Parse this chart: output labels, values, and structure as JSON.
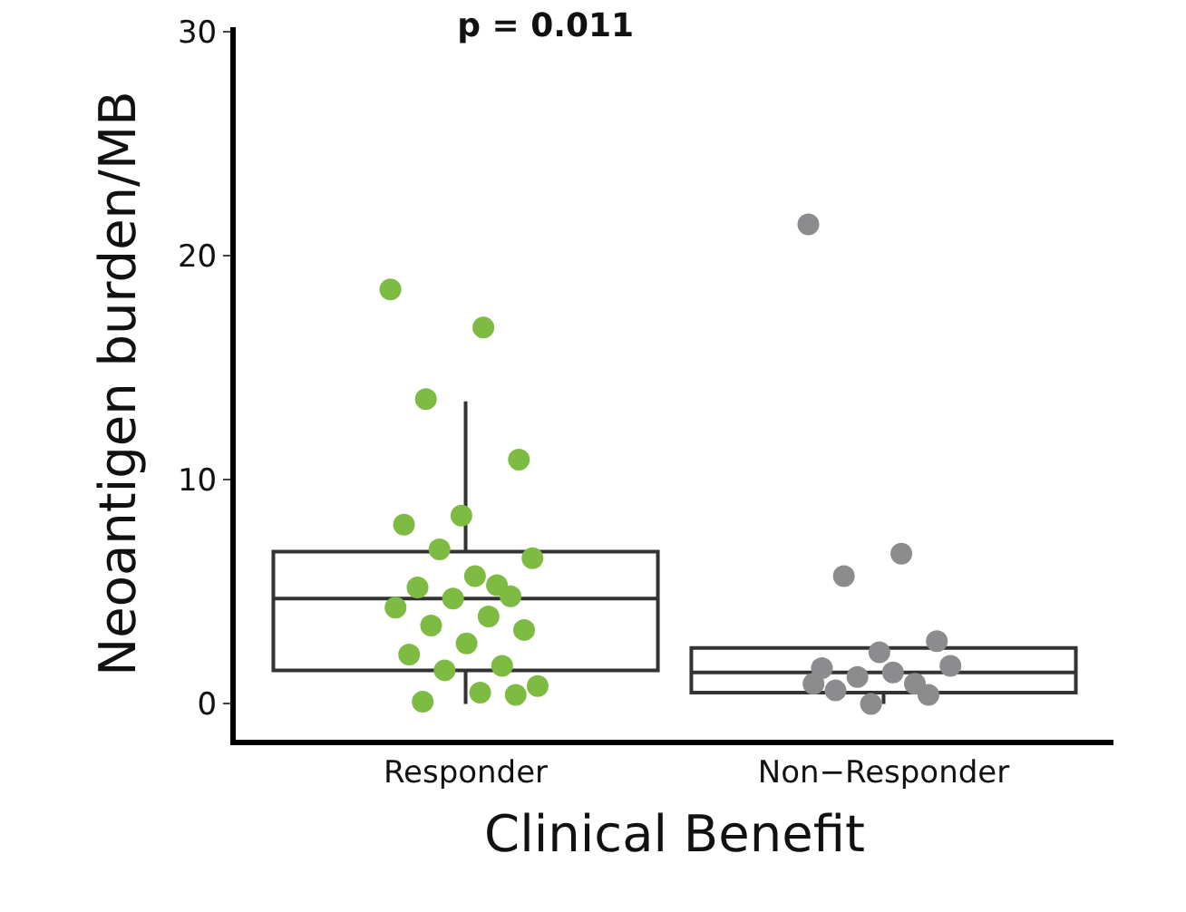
{
  "chart_data": {
    "type": "box",
    "title": "p = 0.011",
    "xlabel": "Clinical Benefit",
    "ylabel": "Neoantigen burden/MB",
    "categories": [
      "Responder",
      "Non−Responder"
    ],
    "boxes": [
      {
        "low": 0,
        "q1": 1.5,
        "median": 4.7,
        "q3": 6.8,
        "high": 13.5
      },
      {
        "low": 0,
        "q1": 0.5,
        "median": 1.4,
        "q3": 2.5,
        "high": 2.7
      }
    ],
    "ylim": [
      -1.6,
      30.2
    ],
    "yticks": [
      0,
      10,
      20,
      30
    ],
    "marker": "circle",
    "series": [
      {
        "type": "scatter",
        "color": "#7dbb42",
        "x": [
          "Responder",
          "Responder",
          "Responder",
          "Responder",
          "Responder",
          "Responder",
          "Responder",
          "Responder",
          "Responder",
          "Responder",
          "Responder",
          "Responder",
          "Responder",
          "Responder",
          "Responder",
          "Responder",
          "Responder",
          "Responder",
          "Responder",
          "Responder",
          "Responder",
          "Responder",
          "Responder",
          "Responder",
          "Responder"
        ],
        "values": [
          18.5,
          16.8,
          13.6,
          10.9,
          8.4,
          8.0,
          5.3,
          6.9,
          6.5,
          5.7,
          5.2,
          4.8,
          4.7,
          4.3,
          3.9,
          3.5,
          3.3,
          2.7,
          2.2,
          1.7,
          1.5,
          0.8,
          0.5,
          0.1,
          0.4
        ]
      },
      {
        "type": "scatter",
        "color": "#8c8c8e",
        "x": [
          "Non−Responder",
          "Non−Responder",
          "Non−Responder",
          "Non−Responder",
          "Non−Responder",
          "Non−Responder",
          "Non−Responder",
          "Non−Responder",
          "Non−Responder",
          "Non−Responder",
          "Non−Responder",
          "Non−Responder",
          "Non−Responder",
          "Non−Responder"
        ],
        "values": [
          21.4,
          6.7,
          5.7,
          2.8,
          2.3,
          1.6,
          0.9,
          1.2,
          1.7,
          1.4,
          0.6,
          0.4,
          0.0,
          0.9
        ]
      }
    ]
  }
}
